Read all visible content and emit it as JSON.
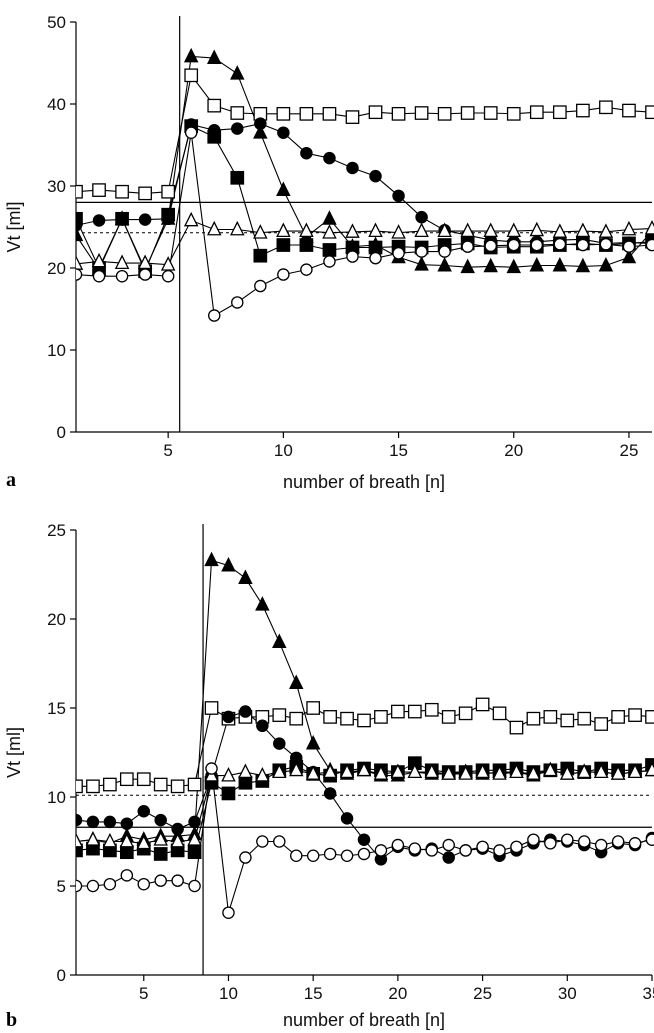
{
  "chart_data": [
    {
      "panel": "a",
      "type": "line",
      "xlabel": "number of breath [n]",
      "ylabel": "Vt [ml]",
      "xlim": [
        1,
        26
      ],
      "ylim": [
        0,
        50
      ],
      "xticks": [
        5,
        10,
        15,
        20,
        25
      ],
      "yticks": [
        0,
        10,
        20,
        30,
        40,
        50
      ],
      "grid": false,
      "legend": "none",
      "vline_x": 5.5,
      "reference_lines": [
        {
          "style": "solid",
          "y": 28.0
        },
        {
          "style": "dashed",
          "y": 24.3
        }
      ],
      "x": [
        1,
        2,
        3,
        4,
        5,
        6,
        7,
        8,
        9,
        10,
        11,
        12,
        13,
        14,
        15,
        16,
        17,
        18,
        19,
        20,
        21,
        22,
        23,
        24,
        25,
        26
      ],
      "series": [
        {
          "marker": "open-square",
          "values": [
            29.3,
            29.5,
            29.3,
            29.1,
            29.3,
            43.5,
            39.8,
            38.9,
            38.8,
            38.8,
            38.8,
            38.8,
            38.4,
            39.0,
            38.8,
            38.9,
            38.8,
            38.9,
            38.9,
            38.8,
            39.0,
            39.0,
            39.2,
            39.6,
            39.2,
            39.0
          ]
        },
        {
          "marker": "filled-triangle",
          "values": [
            24.0,
            19.8,
            26.0,
            19.8,
            26.0,
            45.8,
            45.6,
            43.7,
            36.5,
            29.5,
            23.8,
            26.0,
            22.6,
            22.8,
            21.3,
            20.4,
            20.3,
            20.1,
            20.2,
            20.1,
            20.3,
            20.3,
            20.2,
            20.3,
            21.3,
            24.5
          ]
        },
        {
          "marker": "filled-circle",
          "values": [
            25.2,
            25.8,
            25.9,
            25.9,
            26.0,
            37.5,
            36.8,
            37.0,
            37.6,
            36.5,
            34.0,
            33.4,
            32.2,
            31.2,
            28.8,
            26.2,
            24.6,
            24.0,
            23.4,
            23.2,
            23.2,
            23.4,
            23.5,
            23.0,
            23.1,
            23.0
          ]
        },
        {
          "marker": "filled-square",
          "values": [
            26.0,
            20.0,
            26.0,
            19.6,
            26.5,
            37.3,
            36.0,
            31.0,
            21.5,
            22.8,
            22.8,
            22.2,
            22.5,
            22.5,
            22.6,
            22.5,
            22.8,
            23.0,
            22.5,
            22.6,
            22.6,
            22.8,
            23.0,
            22.8,
            23.0,
            23.2
          ]
        },
        {
          "marker": "open-triangle",
          "values": [
            20.5,
            20.8,
            20.6,
            20.6,
            20.4,
            25.8,
            24.7,
            24.7,
            24.3,
            24.5,
            24.5,
            24.3,
            24.4,
            24.5,
            24.3,
            24.5,
            24.5,
            24.5,
            24.5,
            24.5,
            24.6,
            24.4,
            24.5,
            24.4,
            24.7,
            24.8
          ]
        },
        {
          "marker": "open-circle",
          "values": [
            19.2,
            19.0,
            19.0,
            19.2,
            19.0,
            36.5,
            14.2,
            15.8,
            17.8,
            19.2,
            19.8,
            20.8,
            21.4,
            21.2,
            21.8,
            22.0,
            22.0,
            22.6,
            22.7,
            22.8,
            22.8,
            22.9,
            22.8,
            22.9,
            22.6,
            22.8
          ]
        }
      ]
    },
    {
      "panel": "b",
      "type": "line",
      "xlabel": "number of breath [n]",
      "ylabel": "Vt [ml]",
      "xlim": [
        1,
        35
      ],
      "ylim": [
        0,
        25
      ],
      "xticks": [
        5,
        10,
        15,
        20,
        25,
        30,
        35
      ],
      "yticks": [
        0,
        5,
        10,
        15,
        20,
        25
      ],
      "grid": false,
      "legend": "none",
      "vline_x": 8.5,
      "reference_lines": [
        {
          "style": "solid",
          "y": 8.3
        },
        {
          "style": "dashed",
          "y": 10.1
        }
      ],
      "x": [
        1,
        2,
        3,
        4,
        5,
        6,
        7,
        8,
        9,
        10,
        11,
        12,
        13,
        14,
        15,
        16,
        17,
        18,
        19,
        20,
        21,
        22,
        23,
        24,
        25,
        26,
        27,
        28,
        29,
        30,
        31,
        32,
        33,
        34,
        35
      ],
      "series": [
        {
          "marker": "open-square",
          "values": [
            10.6,
            10.6,
            10.7,
            11.0,
            11.0,
            10.7,
            10.6,
            10.7,
            15.0,
            14.4,
            14.5,
            14.5,
            14.6,
            14.4,
            15.0,
            14.5,
            14.4,
            14.3,
            14.5,
            14.8,
            14.8,
            14.9,
            14.5,
            14.7,
            15.2,
            14.7,
            13.9,
            14.4,
            14.5,
            14.3,
            14.4,
            14.1,
            14.5,
            14.6,
            14.5
          ]
        },
        {
          "marker": "filled-triangle",
          "values": [
            7.5,
            7.6,
            7.4,
            7.8,
            7.6,
            7.8,
            7.8,
            7.9,
            23.3,
            23.0,
            22.3,
            20.8,
            18.7,
            16.4,
            13.0,
            11.5,
            11.3,
            11.5,
            11.2,
            11.2,
            11.4,
            11.3,
            11.3,
            11.4,
            11.3,
            11.4,
            11.4,
            11.2,
            11.5,
            11.3,
            11.4,
            11.4,
            11.3,
            11.4,
            11.5
          ]
        },
        {
          "marker": "filled-circle",
          "values": [
            8.7,
            8.6,
            8.6,
            8.5,
            9.2,
            8.7,
            8.2,
            8.6,
            11.2,
            14.5,
            14.8,
            14.0,
            13.0,
            12.2,
            11.4,
            10.2,
            8.8,
            7.6,
            6.5,
            7.2,
            7.0,
            7.1,
            6.6,
            7.0,
            7.1,
            6.7,
            7.0,
            7.4,
            7.6,
            7.5,
            7.3,
            6.9,
            7.4,
            7.3,
            7.7
          ]
        },
        {
          "marker": "filled-square",
          "values": [
            7.0,
            7.1,
            7.0,
            6.9,
            7.1,
            6.8,
            7.0,
            6.9,
            10.8,
            10.2,
            10.8,
            10.9,
            11.5,
            11.7,
            11.3,
            11.2,
            11.5,
            11.6,
            11.5,
            11.4,
            11.9,
            11.5,
            11.4,
            11.4,
            11.5,
            11.5,
            11.6,
            11.4,
            11.5,
            11.6,
            11.4,
            11.6,
            11.5,
            11.5,
            11.8
          ]
        },
        {
          "marker": "open-triangle",
          "values": [
            7.5,
            7.6,
            7.5,
            7.5,
            7.4,
            7.6,
            7.5,
            7.6,
            11.2,
            11.2,
            11.4,
            11.2,
            11.4,
            11.5,
            11.3,
            11.4,
            11.4,
            11.5,
            11.3,
            11.4,
            11.4,
            11.4,
            11.3,
            11.3,
            11.4,
            11.3,
            11.4,
            11.3,
            11.5,
            11.3,
            11.4,
            11.4,
            11.3,
            11.4,
            11.5
          ]
        },
        {
          "marker": "open-circle",
          "values": [
            5.0,
            5.0,
            5.1,
            5.6,
            5.1,
            5.3,
            5.3,
            5.0,
            11.6,
            3.5,
            6.6,
            7.5,
            7.5,
            6.7,
            6.7,
            6.8,
            6.7,
            6.8,
            7.0,
            7.3,
            7.1,
            7.0,
            7.3,
            7.0,
            7.2,
            7.0,
            7.2,
            7.6,
            7.4,
            7.6,
            7.5,
            7.3,
            7.5,
            7.4,
            7.6
          ]
        }
      ]
    }
  ],
  "panel_labels": [
    "a",
    "b"
  ]
}
